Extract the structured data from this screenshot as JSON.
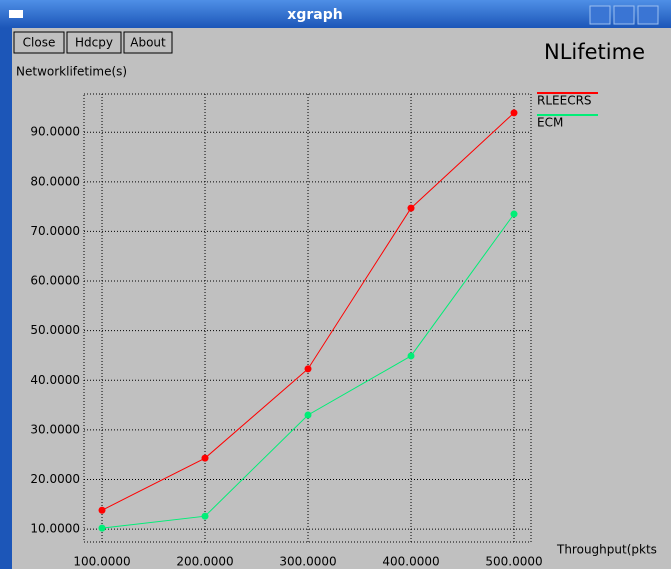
{
  "window": {
    "title": "xgraph",
    "buttons": [
      "Close",
      "Hdcpy",
      "About"
    ]
  },
  "chart_data": {
    "type": "line",
    "title": "NLifetime",
    "y_label": "Networklifetime(s)",
    "x_label": "Throughput(pkts",
    "x": [
      100,
      200,
      300,
      400,
      500
    ],
    "series": [
      {
        "name": "RLEECRS",
        "color": "#ff0000",
        "values": [
          13.8,
          24.3,
          42.3,
          74.7,
          93.9
        ]
      },
      {
        "name": "ECM",
        "color": "#00ee77",
        "values": [
          10.2,
          12.6,
          33.0,
          44.9,
          73.5
        ]
      }
    ],
    "xlim": [
      82.5,
      516.5
    ],
    "ylim": [
      7.4,
      97.7
    ],
    "xticks": [
      {
        "value": 100,
        "label": "100.0000"
      },
      {
        "value": 200,
        "label": "200.0000"
      },
      {
        "value": 300,
        "label": "300.0000"
      },
      {
        "value": 400,
        "label": "400.0000"
      },
      {
        "value": 500,
        "label": "500.0000"
      }
    ],
    "yticks": [
      {
        "value": 10,
        "label": "10.0000"
      },
      {
        "value": 20,
        "label": "20.0000"
      },
      {
        "value": 30,
        "label": "30.0000"
      },
      {
        "value": 40,
        "label": "40.0000"
      },
      {
        "value": 50,
        "label": "50.0000"
      },
      {
        "value": 60,
        "label": "60.0000"
      },
      {
        "value": 70,
        "label": "70.0000"
      },
      {
        "value": 80,
        "label": "80.0000"
      },
      {
        "value": 90,
        "label": "90.0000"
      }
    ],
    "grid": true
  }
}
